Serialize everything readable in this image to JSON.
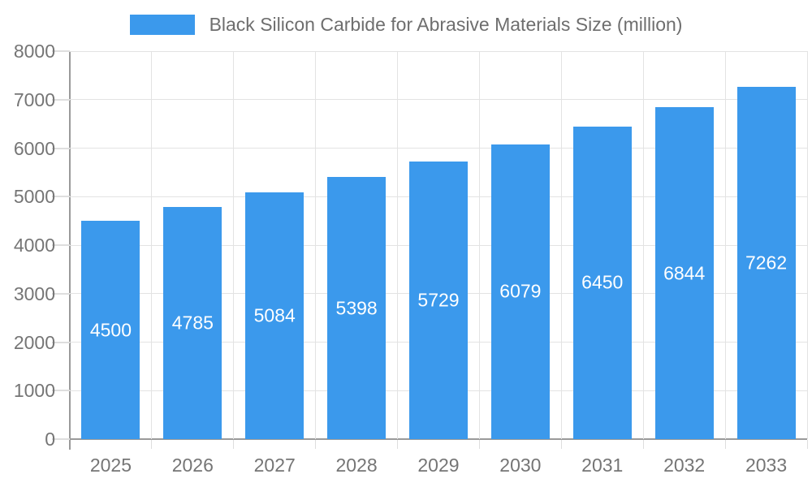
{
  "legend": {
    "label": "Black Silicon Carbide for Abrasive Materials Size (million)"
  },
  "chart_data": {
    "type": "bar",
    "title": "Black Silicon Carbide for Abrasive Materials Size (million)",
    "categories": [
      "2025",
      "2026",
      "2027",
      "2028",
      "2029",
      "2030",
      "2031",
      "2032",
      "2033"
    ],
    "values": [
      4500,
      4785,
      5084,
      5398,
      5729,
      6079,
      6450,
      6844,
      7262
    ],
    "xlabel": "",
    "ylabel": "",
    "ylim": [
      0,
      8000
    ],
    "yticks": [
      0,
      1000,
      2000,
      3000,
      4000,
      5000,
      6000,
      7000,
      8000
    ],
    "grid": "on",
    "legend_position": "top-center",
    "value_labels": "inside-center"
  },
  "colors": {
    "bar": "#3b99ec",
    "grid": "#e3e3e3",
    "axis": "#9a9a9a",
    "tick": "#dedede",
    "axis_label": "#757575",
    "legend_text": "#6e6e6e",
    "value_label": "#ffffff",
    "background": "#ffffff"
  }
}
